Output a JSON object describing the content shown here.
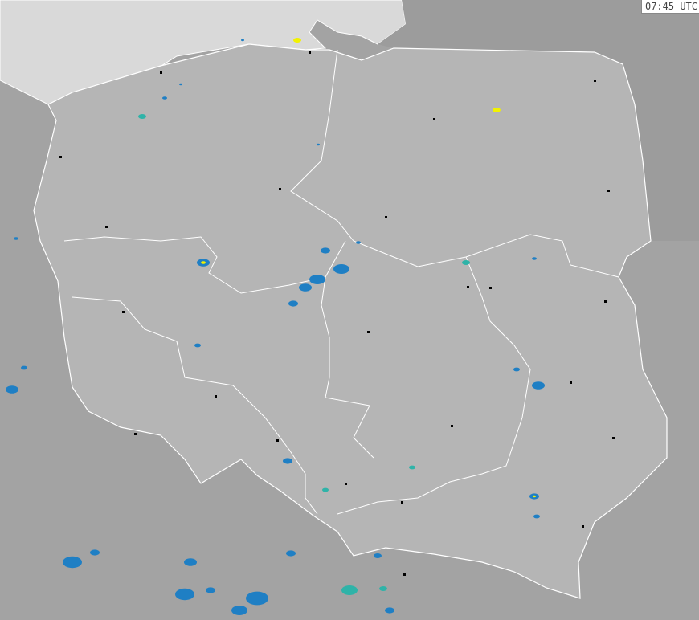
{
  "timestamp": "07:45 UTC",
  "colors": {
    "sea": "#d9d9d9",
    "land_outside": "#a3a3a3",
    "land_country": "#b5b5b5",
    "borders": "#ffffff",
    "radar_light": "#1f7fc4",
    "radar_mid": "#2fb3a8",
    "radar_high": "#f2f200"
  }
}
